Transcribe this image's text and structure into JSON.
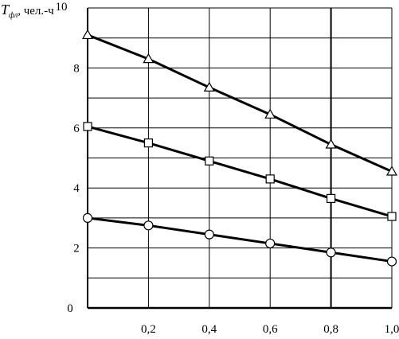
{
  "chart_data": {
    "type": "line",
    "ylabel": {
      "symbol": "T",
      "subscript": "фл",
      "units": ", чел.-ч"
    },
    "xlabel": "",
    "title": "",
    "xlim": [
      0,
      1.0
    ],
    "ylim": [
      0,
      10
    ],
    "x_ticks": [
      "0,2",
      "0,4",
      "0,6",
      "0,8",
      "1,0"
    ],
    "y_ticks": [
      "0",
      "2",
      "4",
      "6",
      "8",
      "10"
    ],
    "grid": true,
    "x": [
      0,
      0.2,
      0.4,
      0.6,
      0.8,
      1.0
    ],
    "series": [
      {
        "marker": "triangle",
        "values": [
          9.1,
          8.3,
          7.35,
          6.45,
          5.45,
          4.55
        ]
      },
      {
        "marker": "square",
        "values": [
          6.05,
          5.5,
          4.9,
          4.3,
          3.65,
          3.05
        ]
      },
      {
        "marker": "circle",
        "values": [
          3.0,
          2.75,
          2.45,
          2.15,
          1.85,
          1.55
        ]
      }
    ]
  }
}
